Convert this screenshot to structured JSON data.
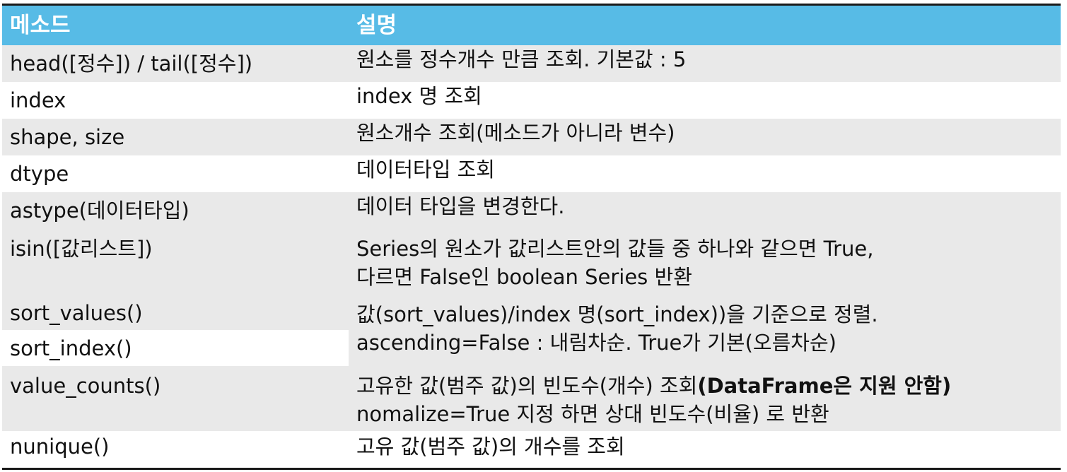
{
  "header": {
    "col1": "메소드",
    "col2": "설명"
  },
  "rows": [
    {
      "method": "head([정수]) / tail([정수])",
      "desc": "원소를 정수개수 만큼 조회. 기본값 : 5"
    },
    {
      "method": "index",
      "desc": "index 명 조회"
    },
    {
      "method": "shape, size",
      "desc": "원소개수 조회(메소드가 아니라 변수)"
    },
    {
      "method": "dtype",
      "desc": "데이터타입 조회"
    },
    {
      "method": "astype(데이터타입)",
      "desc": "데이터 타입을 변경한다."
    },
    {
      "method": "isin([값리스트])",
      "desc_line1": "Series의 원소가 값리스트안의 값들 중 하나와 같으면 True,",
      "desc_line2": "다르면 False인 boolean Series 반환"
    }
  ],
  "sort": {
    "method1": "sort_values()",
    "method2": "sort_index()",
    "desc_line1": "값(sort_values)/index 명(sort_index))을  기준으로 정렬.",
    "desc_line2": "ascending=False : 내림차순. True가 기본(오름차순)"
  },
  "value_counts": {
    "method": "value_counts()",
    "desc_line1": "고유한 값(범주 값)의 빈도수(개수) 조회",
    "desc_line1_bold": "(DataFrame은 지원 안함)",
    "desc_line2": "nomalize=True 지정 하면 상대 빈도수(비율) 로 반환"
  },
  "nunique": {
    "method": "nunique()",
    "desc": "고유 값(범주 값)의 개수를 조회"
  }
}
